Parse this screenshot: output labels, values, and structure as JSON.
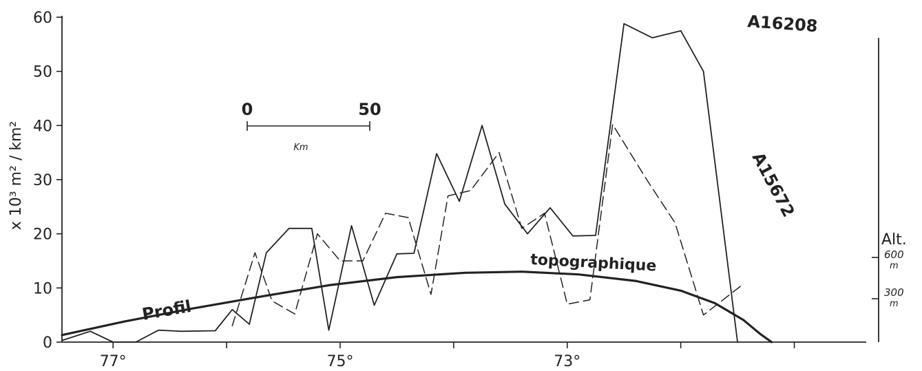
{
  "chart_data": {
    "type": "line",
    "title": "",
    "ylabel": "x 10³ m² / km²",
    "ylim": [
      0,
      60
    ],
    "yticks": [
      0,
      10,
      20,
      30,
      40,
      50,
      60
    ],
    "xlim": [
      77.45,
      70.5
    ],
    "xtick_labels": [
      {
        "x": 77,
        "label": "77°"
      },
      {
        "x": 75,
        "label": "75°"
      },
      {
        "x": 73,
        "label": "73°"
      }
    ],
    "minor_xticks": [
      76,
      74,
      72,
      71
    ],
    "series": [
      {
        "name": "A16208",
        "style": "solid",
        "points": [
          [
            77.45,
            0.3
          ],
          [
            77.2,
            2
          ],
          [
            77.0,
            0
          ],
          [
            76.8,
            0
          ],
          [
            76.6,
            2.2
          ],
          [
            76.4,
            2
          ],
          [
            76.1,
            2.1
          ],
          [
            75.95,
            6
          ],
          [
            75.8,
            3.3
          ],
          [
            75.65,
            16.5
          ],
          [
            75.45,
            21
          ],
          [
            75.25,
            21
          ],
          [
            75.1,
            2.2
          ],
          [
            74.9,
            21.5
          ],
          [
            74.7,
            6.8
          ],
          [
            74.5,
            16.3
          ],
          [
            74.35,
            16.4
          ],
          [
            74.15,
            34.8
          ],
          [
            73.95,
            26
          ],
          [
            73.75,
            40
          ],
          [
            73.55,
            25.5
          ],
          [
            73.35,
            20
          ],
          [
            73.15,
            24.8
          ],
          [
            72.95,
            19.6
          ],
          [
            72.75,
            19.7
          ],
          [
            72.5,
            58.8
          ],
          [
            72.25,
            56.2
          ],
          [
            72.0,
            57.5
          ],
          [
            71.8,
            50
          ],
          [
            71.5,
            0
          ]
        ]
      },
      {
        "name": "A15672",
        "style": "dashed",
        "points": [
          [
            75.95,
            3
          ],
          [
            75.75,
            16.5
          ],
          [
            75.6,
            7.6
          ],
          [
            75.4,
            5.2
          ],
          [
            75.2,
            20
          ],
          [
            75.0,
            15
          ],
          [
            74.8,
            15
          ],
          [
            74.6,
            23.8
          ],
          [
            74.4,
            23
          ],
          [
            74.2,
            8.8
          ],
          [
            74.05,
            27
          ],
          [
            73.85,
            28
          ],
          [
            73.6,
            35
          ],
          [
            73.4,
            21
          ],
          [
            73.2,
            23.8
          ],
          [
            73.0,
            7
          ],
          [
            72.8,
            7.8
          ],
          [
            72.6,
            40.2
          ],
          [
            72.3,
            30
          ],
          [
            72.05,
            22
          ],
          [
            71.8,
            5
          ],
          [
            71.45,
            10.7
          ]
        ]
      },
      {
        "name": "Profil topographique",
        "style": "thick",
        "points": [
          [
            77.45,
            1.3
          ],
          [
            76.9,
            3.8
          ],
          [
            76.3,
            6.2
          ],
          [
            75.7,
            8.4
          ],
          [
            75.1,
            10.5
          ],
          [
            74.5,
            12
          ],
          [
            73.9,
            12.8
          ],
          [
            73.4,
            13
          ],
          [
            72.9,
            12.5
          ],
          [
            72.4,
            11.3
          ],
          [
            72.0,
            9.5
          ],
          [
            71.7,
            7.2
          ],
          [
            71.45,
            4.1
          ],
          [
            71.3,
            1.5
          ],
          [
            71.2,
            0
          ]
        ]
      }
    ],
    "annotations": {
      "series1_label": "A16208",
      "series2_label": "A15672",
      "profil_word1": "Profil",
      "profil_word2": "topographique"
    },
    "scale_bar": {
      "start_label": "0",
      "end_label": "50",
      "unit": "Km"
    },
    "altitude_axis": {
      "title": "Alt.",
      "marks": [
        {
          "value": "600",
          "unit": "m"
        },
        {
          "value": "300",
          "unit": "m"
        }
      ]
    }
  }
}
